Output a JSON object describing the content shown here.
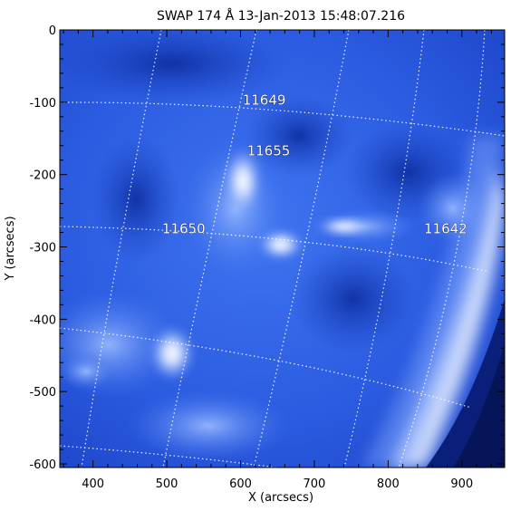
{
  "title": "SWAP 174 Å 13-Jan-2013 15:48:07.216",
  "axes": {
    "xlabel": "X (arcsecs)",
    "ylabel": "Y (arcsecs)",
    "xlim": [
      355,
      958
    ],
    "ylim": [
      -605,
      0
    ],
    "xticks": [
      "400",
      "500",
      "600",
      "700",
      "800",
      "900"
    ],
    "yticks": [
      "0",
      "-100",
      "-200",
      "-300",
      "-400",
      "-500",
      "-600"
    ]
  },
  "regions": [
    {
      "label": "11649",
      "x": 632,
      "y": -97
    },
    {
      "label": "11655",
      "x": 638,
      "y": -167
    },
    {
      "label": "11650",
      "x": 523,
      "y": -275
    },
    {
      "label": "11642",
      "x": 878,
      "y": -275
    }
  ],
  "colors": {
    "background_blue": "#2a5de0",
    "dark_blue": "#0a1f7a",
    "bright": "#e8f0ff",
    "grid": "#ffffff"
  }
}
